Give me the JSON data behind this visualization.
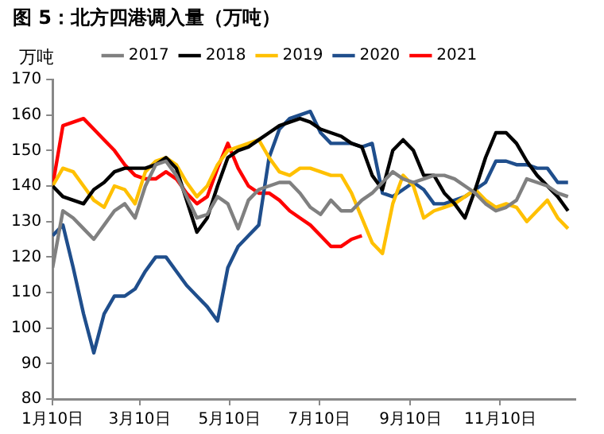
{
  "chart_data": {
    "type": "line",
    "title": "图 5：北方四港调入量（万吨）",
    "ylabel": "万吨",
    "x": [
      "--01-10",
      "--01-17",
      "--01-24",
      "--01-31",
      "--02-07",
      "--02-14",
      "--02-21",
      "--02-28",
      "--03-07",
      "--03-14",
      "--03-21",
      "--03-28",
      "--04-04",
      "--04-11",
      "--04-18",
      "--04-25",
      "--05-02",
      "--05-09",
      "--05-16",
      "--05-23",
      "--05-30",
      "--06-06",
      "--06-13",
      "--06-20",
      "--06-27",
      "--07-04",
      "--07-11",
      "--07-18",
      "--07-25",
      "--08-01",
      "--08-08",
      "--08-15",
      "--08-22",
      "--08-29",
      "--09-05",
      "--09-12",
      "--09-19",
      "--09-26",
      "--10-03",
      "--10-10",
      "--10-17",
      "--10-24",
      "--10-31",
      "--11-07",
      "--11-14",
      "--11-21",
      "--11-28",
      "--12-05",
      "--12-12",
      "--12-19",
      "--12-26"
    ],
    "series": [
      {
        "name": "2017",
        "color": "#808080",
        "values": [
          117,
          133,
          131,
          128,
          125,
          129,
          133,
          135,
          131,
          140,
          146,
          147,
          143,
          137,
          131,
          132,
          137,
          135,
          128,
          136,
          139,
          140,
          141,
          141,
          138,
          134,
          132,
          136,
          133,
          133,
          136,
          138,
          141,
          144,
          142,
          141,
          142,
          143,
          143,
          142,
          140,
          138,
          135,
          133,
          134,
          136,
          142,
          141,
          140,
          138,
          137
        ]
      },
      {
        "name": "2018",
        "color": "#000000",
        "values": [
          140,
          137,
          136,
          135,
          139,
          141,
          144,
          145,
          145,
          145,
          146,
          148,
          145,
          136,
          127,
          131,
          140,
          148,
          150,
          151,
          153,
          155,
          157,
          158,
          159,
          158,
          156,
          155,
          154,
          152,
          151,
          143,
          139,
          150,
          153,
          150,
          143,
          143,
          138,
          135,
          131,
          139,
          148,
          155,
          155,
          152,
          147,
          143,
          140,
          137,
          133
        ]
      },
      {
        "name": "2019",
        "color": "#ffc000",
        "values": [
          140,
          145,
          144,
          140,
          136,
          134,
          140,
          139,
          135,
          144,
          147,
          148,
          146,
          141,
          137,
          140,
          146,
          150,
          151,
          152,
          153,
          148,
          144,
          143,
          145,
          145,
          144,
          143,
          143,
          138,
          131,
          124,
          121,
          135,
          143,
          140,
          131,
          133,
          134,
          135,
          137,
          139,
          136,
          134,
          135,
          134,
          130,
          133,
          136,
          131,
          128
        ]
      },
      {
        "name": "2020",
        "color": "#1f4e8c",
        "values": [
          126,
          129,
          117,
          104,
          93,
          104,
          109,
          109,
          111,
          116,
          120,
          120,
          116,
          112,
          109,
          106,
          102,
          117,
          123,
          126,
          129,
          148,
          156,
          159,
          160,
          161,
          155,
          152,
          152,
          152,
          151,
          152,
          138,
          137,
          139,
          141,
          139,
          135,
          135,
          136,
          137,
          139,
          141,
          147,
          147,
          146,
          146,
          145,
          145,
          141,
          141
        ]
      },
      {
        "name": "2021",
        "color": "#ff0000",
        "values": [
          140,
          157,
          158,
          159,
          156,
          153,
          150,
          146,
          143,
          142,
          142,
          144,
          142,
          138,
          135,
          137,
          145,
          152,
          145,
          140,
          138,
          138,
          136,
          133,
          131,
          129,
          126,
          123,
          123,
          125,
          126,
          null,
          null,
          null,
          null,
          null,
          null,
          null,
          null,
          null,
          null,
          null,
          null,
          null,
          null,
          null,
          null,
          null,
          null,
          null,
          null
        ]
      }
    ],
    "xlim": [
      "--01-10",
      "--12-31"
    ],
    "xticks": [
      {
        "value": "--01-10",
        "label": "1月10日"
      },
      {
        "value": "--03-10",
        "label": "3月10日"
      },
      {
        "value": "--05-10",
        "label": "5月10日"
      },
      {
        "value": "--07-10",
        "label": "7月10日"
      },
      {
        "value": "--09-10",
        "label": "9月10日"
      },
      {
        "value": "--11-10",
        "label": "11月10日"
      }
    ],
    "ylim": [
      80,
      170
    ],
    "yticks": [
      80,
      90,
      100,
      110,
      120,
      130,
      140,
      150,
      160,
      170
    ],
    "grid": false,
    "legend": "top",
    "marker": "none",
    "line_style": "solid"
  }
}
